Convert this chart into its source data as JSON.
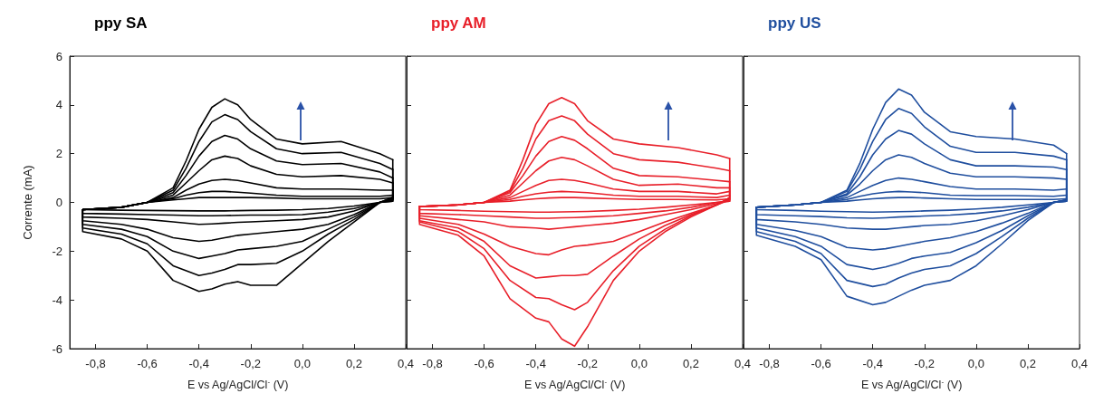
{
  "chart_data": [
    {
      "type": "line",
      "title": "ppy SA",
      "xlabel": "E vs Ag/AgCl/Cl$^{-}$ (V)",
      "ylabel": "Corrente (mA)",
      "marker": "none",
      "xlim": [
        -0.9,
        0.4
      ],
      "ylim": [
        -6,
        6
      ],
      "xticks": [
        {
          "value": -0.8,
          "label": "-0,8"
        },
        {
          "value": -0.6,
          "label": "-0,6"
        },
        {
          "value": -0.4,
          "label": "-0,4"
        },
        {
          "value": -0.2,
          "label": "-0,2"
        },
        {
          "value": 0,
          "label": "0,0"
        },
        {
          "value": 0.2,
          "label": "0,2"
        },
        {
          "value": 0.4,
          "label": "0,4"
        }
      ],
      "yticks": [
        -6,
        -4,
        -2,
        0,
        2,
        4,
        6
      ],
      "x": [
        -0.85,
        -0.7,
        -0.6,
        -0.5,
        -0.45,
        -0.4,
        -0.35,
        -0.3,
        -0.25,
        -0.2,
        -0.1,
        0,
        0.15,
        0.3,
        0.35
      ],
      "series": [
        {
          "color": "#000000",
          "values": [
            -0.3,
            -0.2,
            0.0,
            0.6,
            1.7,
            3.0,
            3.9,
            4.25,
            4.0,
            3.4,
            2.6,
            2.4,
            2.5,
            2.0,
            1.75
          ]
        },
        {
          "color": "#000000",
          "values": [
            -0.3,
            -0.2,
            0.0,
            0.5,
            1.4,
            2.5,
            3.3,
            3.6,
            3.4,
            2.9,
            2.2,
            2.0,
            2.05,
            1.6,
            1.35
          ]
        },
        {
          "color": "#000000",
          "values": [
            -0.3,
            -0.2,
            0.0,
            0.4,
            1.1,
            1.9,
            2.5,
            2.75,
            2.6,
            2.2,
            1.7,
            1.55,
            1.6,
            1.25,
            1.0
          ]
        },
        {
          "color": "#000000",
          "values": [
            -0.3,
            -0.2,
            0.0,
            0.3,
            0.8,
            1.3,
            1.75,
            1.9,
            1.8,
            1.5,
            1.15,
            1.05,
            1.1,
            0.95,
            0.8
          ]
        },
        {
          "color": "#000000",
          "values": [
            -0.3,
            -0.2,
            0.0,
            0.2,
            0.5,
            0.75,
            0.9,
            0.95,
            0.9,
            0.8,
            0.6,
            0.55,
            0.55,
            0.5,
            0.5
          ]
        },
        {
          "color": "#000000",
          "values": [
            -0.3,
            -0.2,
            0.0,
            0.15,
            0.3,
            0.4,
            0.45,
            0.45,
            0.42,
            0.38,
            0.3,
            0.25,
            0.25,
            0.25,
            0.3
          ]
        },
        {
          "color": "#000000",
          "values": [
            -0.3,
            -0.2,
            0.0,
            0.1,
            0.15,
            0.2,
            0.2,
            0.2,
            0.2,
            0.2,
            0.18,
            0.15,
            0.15,
            0.15,
            0.2
          ]
        },
        {
          "color": "#000000",
          "x": [
            -0.85,
            -0.85,
            -0.7,
            -0.6,
            -0.5,
            -0.4,
            -0.35,
            -0.3,
            -0.25,
            -0.2,
            -0.1,
            0,
            0.1,
            0.2,
            0.3,
            0.35,
            0.35
          ],
          "values": [
            -0.3,
            -1.2,
            -1.5,
            -2.0,
            -3.2,
            -3.65,
            -3.55,
            -3.35,
            -3.25,
            -3.4,
            -3.4,
            -2.5,
            -1.6,
            -0.8,
            0.0,
            0.2,
            1.75
          ]
        },
        {
          "color": "#000000",
          "x": [
            -0.85,
            -0.85,
            -0.7,
            -0.6,
            -0.5,
            -0.4,
            -0.35,
            -0.3,
            -0.25,
            -0.2,
            -0.1,
            0,
            0.1,
            0.2,
            0.3,
            0.35,
            0.35
          ],
          "values": [
            -0.3,
            -1.05,
            -1.3,
            -1.7,
            -2.6,
            -3.0,
            -2.9,
            -2.75,
            -2.55,
            -2.55,
            -2.5,
            -2.0,
            -1.3,
            -0.7,
            0.0,
            0.2,
            1.35
          ]
        },
        {
          "color": "#000000",
          "x": [
            -0.85,
            -0.85,
            -0.7,
            -0.6,
            -0.5,
            -0.4,
            -0.35,
            -0.3,
            -0.25,
            -0.2,
            -0.1,
            0,
            0.1,
            0.2,
            0.3,
            0.35,
            0.35
          ],
          "values": [
            -0.3,
            -0.9,
            -1.1,
            -1.4,
            -2.0,
            -2.3,
            -2.2,
            -2.1,
            -1.95,
            -1.9,
            -1.8,
            -1.6,
            -1.1,
            -0.6,
            0.0,
            0.15,
            1.0
          ]
        },
        {
          "color": "#000000",
          "x": [
            -0.85,
            -0.85,
            -0.7,
            -0.6,
            -0.5,
            -0.4,
            -0.35,
            -0.3,
            -0.25,
            -0.2,
            -0.1,
            0,
            0.1,
            0.2,
            0.3,
            0.35,
            0.35
          ],
          "values": [
            -0.3,
            -0.75,
            -0.9,
            -1.1,
            -1.45,
            -1.6,
            -1.55,
            -1.45,
            -1.35,
            -1.3,
            -1.2,
            -1.1,
            -0.9,
            -0.5,
            0.0,
            0.1,
            0.8
          ]
        },
        {
          "color": "#000000",
          "x": [
            -0.85,
            -0.85,
            -0.7,
            -0.6,
            -0.5,
            -0.4,
            -0.35,
            -0.3,
            -0.25,
            -0.2,
            -0.1,
            0,
            0.1,
            0.2,
            0.3,
            0.35,
            0.35
          ],
          "values": [
            -0.3,
            -0.6,
            -0.65,
            -0.7,
            -0.8,
            -0.9,
            -0.88,
            -0.85,
            -0.82,
            -0.8,
            -0.75,
            -0.7,
            -0.6,
            -0.35,
            0.0,
            0.1,
            0.5
          ]
        },
        {
          "color": "#000000",
          "x": [
            -0.85,
            -0.85,
            -0.7,
            -0.6,
            -0.5,
            -0.4,
            -0.35,
            -0.3,
            -0.25,
            -0.2,
            -0.1,
            0,
            0.1,
            0.2,
            0.3,
            0.35,
            0.35
          ],
          "values": [
            -0.3,
            -0.45,
            -0.48,
            -0.5,
            -0.52,
            -0.55,
            -0.55,
            -0.54,
            -0.53,
            -0.52,
            -0.52,
            -0.5,
            -0.4,
            -0.25,
            0.0,
            0.05,
            0.3
          ]
        },
        {
          "color": "#000000",
          "x": [
            -0.85,
            -0.7,
            -0.6,
            -0.5,
            -0.4,
            -0.35,
            -0.3,
            -0.25,
            -0.2,
            -0.1,
            0,
            0.1,
            0.2,
            0.3,
            0.35,
            0.35
          ],
          "values": [
            -0.3,
            -0.32,
            -0.33,
            -0.34,
            -0.35,
            -0.35,
            -0.35,
            -0.34,
            -0.33,
            -0.32,
            -0.3,
            -0.25,
            -0.15,
            0.0,
            0.05,
            0.2
          ]
        }
      ]
    },
    {
      "type": "line",
      "title": "ppy AM",
      "xlabel": "E vs Ag/AgCl/Cl$^{-}$ (V)",
      "marker": "none",
      "tick_labels": "x",
      "xlim": [
        -0.9,
        0.4
      ],
      "ylim": [
        -6,
        6
      ],
      "xticks": [
        {
          "value": -0.8,
          "label": "-0,8"
        },
        {
          "value": -0.6,
          "label": "-0,6"
        },
        {
          "value": -0.4,
          "label": "-0,4"
        },
        {
          "value": -0.2,
          "label": "-0,2"
        },
        {
          "value": 0,
          "label": "0,0"
        },
        {
          "value": 0.2,
          "label": "0,2"
        },
        {
          "value": 0.4,
          "label": "0,4"
        }
      ],
      "yticks": [
        -6,
        -4,
        -2,
        0,
        2,
        4,
        6
      ],
      "x": [
        -0.85,
        -0.7,
        -0.6,
        -0.5,
        -0.45,
        -0.4,
        -0.35,
        -0.3,
        -0.25,
        -0.2,
        -0.1,
        0,
        0.15,
        0.3,
        0.35
      ],
      "series": [
        {
          "color": "#e8202a",
          "values": [
            -0.17,
            -0.1,
            0.0,
            0.5,
            1.75,
            3.2,
            4.05,
            4.3,
            4.05,
            3.35,
            2.6,
            2.4,
            2.25,
            1.95,
            1.8
          ]
        },
        {
          "color": "#e8202a",
          "values": [
            -0.17,
            -0.1,
            0.0,
            0.45,
            1.4,
            2.6,
            3.35,
            3.55,
            3.35,
            2.8,
            2.0,
            1.75,
            1.65,
            1.4,
            1.3
          ]
        },
        {
          "color": "#e8202a",
          "values": [
            -0.17,
            -0.1,
            0.0,
            0.4,
            1.1,
            1.9,
            2.5,
            2.7,
            2.55,
            2.2,
            1.4,
            1.1,
            1.05,
            0.9,
            0.85
          ]
        },
        {
          "color": "#e8202a",
          "values": [
            -0.17,
            -0.1,
            0.0,
            0.3,
            0.8,
            1.3,
            1.7,
            1.85,
            1.75,
            1.5,
            0.95,
            0.7,
            0.75,
            0.6,
            0.6
          ]
        },
        {
          "color": "#e8202a",
          "values": [
            -0.17,
            -0.1,
            0.0,
            0.2,
            0.45,
            0.7,
            0.9,
            0.95,
            0.9,
            0.8,
            0.55,
            0.45,
            0.45,
            0.35,
            0.45
          ]
        },
        {
          "color": "#e8202a",
          "values": [
            -0.17,
            -0.1,
            0.0,
            0.12,
            0.25,
            0.35,
            0.42,
            0.45,
            0.43,
            0.4,
            0.3,
            0.25,
            0.25,
            0.2,
            0.3
          ]
        },
        {
          "color": "#e8202a",
          "values": [
            -0.17,
            -0.1,
            0.0,
            0.05,
            0.1,
            0.15,
            0.18,
            0.2,
            0.2,
            0.18,
            0.15,
            0.12,
            0.12,
            0.1,
            0.15
          ]
        },
        {
          "color": "#e8202a",
          "x": [
            -0.85,
            -0.85,
            -0.7,
            -0.6,
            -0.5,
            -0.4,
            -0.35,
            -0.3,
            -0.25,
            -0.2,
            -0.1,
            0,
            0.1,
            0.2,
            0.3,
            0.35,
            0.35
          ],
          "values": [
            -0.17,
            -0.9,
            -1.35,
            -2.2,
            -3.95,
            -4.75,
            -4.9,
            -5.6,
            -5.9,
            -5.1,
            -3.2,
            -2.0,
            -1.2,
            -0.6,
            -0.1,
            0.2,
            1.8
          ]
        },
        {
          "color": "#e8202a",
          "x": [
            -0.85,
            -0.85,
            -0.7,
            -0.6,
            -0.5,
            -0.4,
            -0.35,
            -0.3,
            -0.25,
            -0.2,
            -0.1,
            0,
            0.1,
            0.2,
            0.3,
            0.35,
            0.35
          ],
          "values": [
            -0.17,
            -0.8,
            -1.2,
            -1.9,
            -3.2,
            -3.9,
            -3.95,
            -4.2,
            -4.4,
            -4.1,
            -2.8,
            -1.8,
            -1.1,
            -0.55,
            -0.1,
            0.2,
            1.3
          ]
        },
        {
          "color": "#e8202a",
          "x": [
            -0.85,
            -0.85,
            -0.7,
            -0.6,
            -0.5,
            -0.4,
            -0.35,
            -0.3,
            -0.25,
            -0.2,
            -0.1,
            0,
            0.1,
            0.2,
            0.3,
            0.35,
            0.35
          ],
          "values": [
            -0.17,
            -0.75,
            -1.05,
            -1.6,
            -2.6,
            -3.1,
            -3.05,
            -3.0,
            -3.0,
            -2.95,
            -2.2,
            -1.5,
            -0.95,
            -0.5,
            -0.1,
            0.15,
            0.85
          ]
        },
        {
          "color": "#e8202a",
          "x": [
            -0.85,
            -0.85,
            -0.7,
            -0.6,
            -0.5,
            -0.4,
            -0.35,
            -0.3,
            -0.25,
            -0.2,
            -0.1,
            0,
            0.1,
            0.2,
            0.3,
            0.35,
            0.35
          ],
          "values": [
            -0.17,
            -0.65,
            -0.9,
            -1.3,
            -1.8,
            -2.1,
            -2.15,
            -1.95,
            -1.8,
            -1.75,
            -1.6,
            -1.2,
            -0.8,
            -0.45,
            -0.1,
            0.1,
            0.6
          ]
        },
        {
          "color": "#e8202a",
          "x": [
            -0.85,
            -0.85,
            -0.7,
            -0.6,
            -0.5,
            -0.4,
            -0.35,
            -0.3,
            -0.25,
            -0.2,
            -0.1,
            0,
            0.1,
            0.2,
            0.3,
            0.35,
            0.35
          ],
          "values": [
            -0.17,
            -0.55,
            -0.7,
            -0.8,
            -1.0,
            -1.05,
            -1.1,
            -1.05,
            -1.0,
            -0.95,
            -0.85,
            -0.7,
            -0.5,
            -0.3,
            -0.05,
            0.1,
            0.45
          ]
        },
        {
          "color": "#e8202a",
          "x": [
            -0.85,
            -0.85,
            -0.7,
            -0.6,
            -0.5,
            -0.4,
            -0.35,
            -0.3,
            -0.25,
            -0.2,
            -0.1,
            0,
            0.1,
            0.2,
            0.3,
            0.35,
            0.35
          ],
          "values": [
            -0.17,
            -0.45,
            -0.5,
            -0.55,
            -0.6,
            -0.65,
            -0.65,
            -0.63,
            -0.62,
            -0.6,
            -0.55,
            -0.45,
            -0.35,
            -0.2,
            0.0,
            0.05,
            0.3
          ]
        },
        {
          "color": "#e8202a",
          "x": [
            -0.85,
            -0.85,
            -0.7,
            -0.6,
            -0.5,
            -0.4,
            -0.35,
            -0.3,
            -0.25,
            -0.2,
            -0.1,
            0,
            0.1,
            0.2,
            0.3,
            0.35,
            0.35
          ],
          "values": [
            -0.17,
            -0.3,
            -0.33,
            -0.36,
            -0.38,
            -0.4,
            -0.4,
            -0.39,
            -0.38,
            -0.37,
            -0.33,
            -0.28,
            -0.2,
            -0.1,
            0.0,
            0.05,
            0.15
          ]
        }
      ]
    },
    {
      "type": "line",
      "title": "ppy US",
      "xlabel": "E vs Ag/AgCl/Cl$^{-}$ (V)",
      "marker": "none",
      "tick_labels": "x",
      "xlim": [
        -0.9,
        0.4
      ],
      "ylim": [
        -6,
        6
      ],
      "xticks": [
        {
          "value": -0.8,
          "label": "-0,8"
        },
        {
          "value": -0.6,
          "label": "-0,6"
        },
        {
          "value": -0.4,
          "label": "-0,4"
        },
        {
          "value": -0.2,
          "label": "-0,2"
        },
        {
          "value": 0,
          "label": "0,0"
        },
        {
          "value": 0.2,
          "label": "0,2"
        },
        {
          "value": 0.4,
          "label": "0,4"
        }
      ],
      "yticks": [
        -6,
        -4,
        -2,
        0,
        2,
        4,
        6
      ],
      "x": [
        -0.85,
        -0.7,
        -0.6,
        -0.5,
        -0.45,
        -0.4,
        -0.35,
        -0.3,
        -0.25,
        -0.2,
        -0.1,
        0,
        0.15,
        0.3,
        0.35
      ],
      "series": [
        {
          "color": "#1f4e9e",
          "values": [
            -0.2,
            -0.1,
            0.0,
            0.5,
            1.6,
            3.0,
            4.1,
            4.65,
            4.4,
            3.7,
            2.9,
            2.7,
            2.6,
            2.35,
            2.0
          ]
        },
        {
          "color": "#1f4e9e",
          "values": [
            -0.2,
            -0.1,
            0.0,
            0.45,
            1.35,
            2.5,
            3.4,
            3.85,
            3.65,
            3.1,
            2.3,
            2.05,
            2.05,
            1.9,
            1.75
          ]
        },
        {
          "color": "#1f4e9e",
          "values": [
            -0.2,
            -0.1,
            0.0,
            0.35,
            1.05,
            1.95,
            2.6,
            2.95,
            2.8,
            2.4,
            1.75,
            1.5,
            1.5,
            1.45,
            1.35
          ]
        },
        {
          "color": "#1f4e9e",
          "values": [
            -0.2,
            -0.1,
            0.0,
            0.3,
            0.75,
            1.3,
            1.75,
            1.95,
            1.85,
            1.6,
            1.2,
            1.05,
            1.05,
            1.0,
            0.95
          ]
        },
        {
          "color": "#1f4e9e",
          "values": [
            -0.2,
            -0.1,
            0.0,
            0.2,
            0.45,
            0.7,
            0.9,
            1.0,
            0.95,
            0.85,
            0.65,
            0.55,
            0.55,
            0.5,
            0.55
          ]
        },
        {
          "color": "#1f4e9e",
          "values": [
            -0.2,
            -0.1,
            0.0,
            0.12,
            0.25,
            0.35,
            0.42,
            0.45,
            0.43,
            0.4,
            0.3,
            0.28,
            0.28,
            0.25,
            0.3
          ]
        },
        {
          "color": "#1f4e9e",
          "values": [
            -0.2,
            -0.1,
            0.0,
            0.05,
            0.1,
            0.15,
            0.18,
            0.2,
            0.2,
            0.18,
            0.15,
            0.12,
            0.12,
            0.12,
            0.15
          ]
        },
        {
          "color": "#1f4e9e",
          "x": [
            -0.85,
            -0.85,
            -0.7,
            -0.6,
            -0.5,
            -0.4,
            -0.35,
            -0.3,
            -0.25,
            -0.2,
            -0.1,
            0,
            0.1,
            0.2,
            0.3,
            0.35,
            0.35
          ],
          "values": [
            -0.2,
            -1.35,
            -1.8,
            -2.35,
            -3.85,
            -4.2,
            -4.1,
            -3.85,
            -3.6,
            -3.4,
            -3.2,
            -2.6,
            -1.7,
            -0.75,
            0.0,
            0.1,
            2.0
          ]
        },
        {
          "color": "#1f4e9e",
          "x": [
            -0.85,
            -0.85,
            -0.7,
            -0.6,
            -0.5,
            -0.4,
            -0.35,
            -0.3,
            -0.25,
            -0.2,
            -0.1,
            0,
            0.1,
            0.2,
            0.3,
            0.35,
            0.35
          ],
          "values": [
            -0.2,
            -1.2,
            -1.6,
            -2.1,
            -3.2,
            -3.45,
            -3.35,
            -3.1,
            -2.9,
            -2.75,
            -2.6,
            -2.1,
            -1.4,
            -0.65,
            0.0,
            0.1,
            1.75
          ]
        },
        {
          "color": "#1f4e9e",
          "x": [
            -0.85,
            -0.85,
            -0.7,
            -0.6,
            -0.5,
            -0.4,
            -0.35,
            -0.3,
            -0.25,
            -0.2,
            -0.1,
            0,
            0.1,
            0.2,
            0.3,
            0.35,
            0.35
          ],
          "values": [
            -0.2,
            -1.05,
            -1.4,
            -1.8,
            -2.55,
            -2.75,
            -2.65,
            -2.5,
            -2.3,
            -2.2,
            -2.05,
            -1.65,
            -1.15,
            -0.55,
            0.0,
            0.1,
            1.35
          ]
        },
        {
          "color": "#1f4e9e",
          "x": [
            -0.85,
            -0.85,
            -0.7,
            -0.6,
            -0.5,
            -0.4,
            -0.35,
            -0.3,
            -0.25,
            -0.2,
            -0.1,
            0,
            0.1,
            0.2,
            0.3,
            0.35,
            0.35
          ],
          "values": [
            -0.2,
            -0.9,
            -1.15,
            -1.4,
            -1.85,
            -1.95,
            -1.9,
            -1.8,
            -1.7,
            -1.6,
            -1.45,
            -1.2,
            -0.85,
            -0.45,
            0.0,
            0.1,
            0.95
          ]
        },
        {
          "color": "#1f4e9e",
          "x": [
            -0.85,
            -0.85,
            -0.7,
            -0.6,
            -0.5,
            -0.4,
            -0.35,
            -0.3,
            -0.25,
            -0.2,
            -0.1,
            0,
            0.1,
            0.2,
            0.3,
            0.35,
            0.35
          ],
          "values": [
            -0.2,
            -0.7,
            -0.8,
            -0.9,
            -1.05,
            -1.1,
            -1.1,
            -1.05,
            -1.0,
            -0.95,
            -0.9,
            -0.75,
            -0.55,
            -0.3,
            0.0,
            0.05,
            0.55
          ]
        },
        {
          "color": "#1f4e9e",
          "x": [
            -0.85,
            -0.85,
            -0.7,
            -0.6,
            -0.5,
            -0.4,
            -0.35,
            -0.3,
            -0.25,
            -0.2,
            -0.1,
            0,
            0.1,
            0.2,
            0.3,
            0.35,
            0.35
          ],
          "values": [
            -0.2,
            -0.5,
            -0.55,
            -0.58,
            -0.63,
            -0.65,
            -0.63,
            -0.6,
            -0.58,
            -0.56,
            -0.52,
            -0.45,
            -0.35,
            -0.2,
            0.0,
            0.05,
            0.3
          ]
        },
        {
          "color": "#1f4e9e",
          "x": [
            -0.85,
            -0.85,
            -0.7,
            -0.6,
            -0.5,
            -0.4,
            -0.35,
            -0.3,
            -0.25,
            -0.2,
            -0.1,
            0,
            0.1,
            0.2,
            0.3,
            0.35,
            0.35
          ],
          "values": [
            -0.2,
            -0.3,
            -0.33,
            -0.36,
            -0.38,
            -0.4,
            -0.39,
            -0.38,
            -0.37,
            -0.35,
            -0.32,
            -0.27,
            -0.2,
            -0.1,
            0.0,
            0.05,
            0.15
          ]
        }
      ]
    }
  ]
}
